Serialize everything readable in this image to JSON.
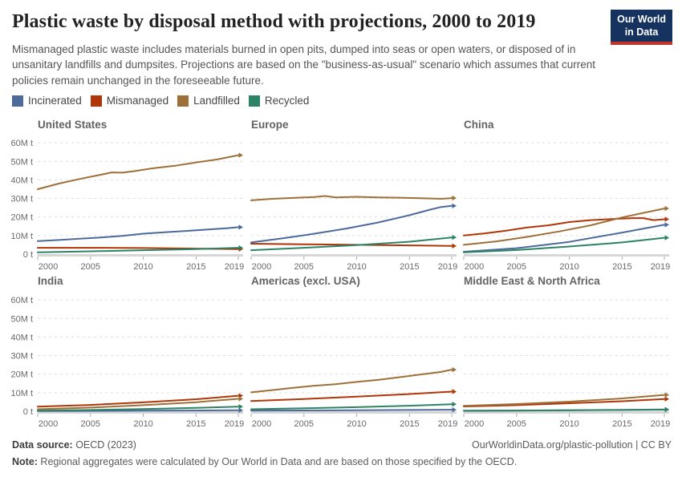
{
  "header": {
    "title": "Plastic waste by disposal method with projections, 2000 to 2019",
    "subtitle": "Mismanaged plastic waste includes materials burned in open pits, dumped into seas or open waters, or disposed of in unsanitary landfills and dumpsites. Projections are based on the \"business-as-usual\" scenario which assumes that current policies remain unchanged in the foreseeable future.",
    "logo": {
      "line1": "Our World",
      "line2": "in Data",
      "bg_color": "#16335F",
      "accent_color": "#C5342B"
    }
  },
  "legend": {
    "items": [
      {
        "label": "Incinerated",
        "color": "#4C6A9C"
      },
      {
        "label": "Mismanaged",
        "color": "#B13507"
      },
      {
        "label": "Landfilled",
        "color": "#9D7039"
      },
      {
        "label": "Recycled",
        "color": "#2C8465"
      }
    ]
  },
  "axes": {
    "unit": "million tonnes",
    "y_tick_labels": [
      "0 t",
      "10M t",
      "20M t",
      "30M t",
      "40M t",
      "50M t",
      "60M t"
    ],
    "y_tick_values": [
      0,
      10,
      20,
      30,
      40,
      50,
      60
    ],
    "x_tick_years": [
      2000,
      2005,
      2010,
      2015,
      2019
    ],
    "ylim": [
      0,
      60
    ],
    "xlim": [
      2000,
      2019
    ],
    "grid": "dashed-horizontal"
  },
  "chart_data": [
    {
      "title": "United States",
      "type": "line",
      "series": [
        {
          "name": "Incinerated",
          "points": [
            [
              2000,
              7
            ],
            [
              2002,
              7.6
            ],
            [
              2004,
              8.3
            ],
            [
              2006,
              9
            ],
            [
              2008,
              9.8
            ],
            [
              2010,
              11
            ],
            [
              2012,
              11.8
            ],
            [
              2014,
              12.5
            ],
            [
              2016,
              13.2
            ],
            [
              2018,
              14
            ],
            [
              2019,
              14.5
            ]
          ]
        },
        {
          "name": "Mismanaged",
          "points": [
            [
              2000,
              3.4
            ],
            [
              2005,
              3.4
            ],
            [
              2010,
              3.3
            ],
            [
              2015,
              3.0
            ],
            [
              2019,
              2.7
            ]
          ]
        },
        {
          "name": "Landfilled",
          "points": [
            [
              2000,
              35
            ],
            [
              2002,
              38
            ],
            [
              2004,
              40.5
            ],
            [
              2006,
              42.8
            ],
            [
              2007,
              44
            ],
            [
              2008,
              43.9
            ],
            [
              2009,
              44.6
            ],
            [
              2011,
              46.3
            ],
            [
              2013,
              47.6
            ],
            [
              2015,
              49.4
            ],
            [
              2017,
              51
            ],
            [
              2019,
              53.3
            ]
          ]
        },
        {
          "name": "Recycled",
          "points": [
            [
              2000,
              1.0
            ],
            [
              2005,
              1.5
            ],
            [
              2010,
              2.1
            ],
            [
              2015,
              2.7
            ],
            [
              2019,
              3.4
            ]
          ]
        }
      ]
    },
    {
      "title": "Europe",
      "type": "line",
      "series": [
        {
          "name": "Incinerated",
          "points": [
            [
              2000,
              6.3
            ],
            [
              2003,
              8.5
            ],
            [
              2006,
              11
            ],
            [
              2009,
              13.8
            ],
            [
              2012,
              17
            ],
            [
              2015,
              21
            ],
            [
              2017,
              24
            ],
            [
              2018,
              25.4
            ],
            [
              2019,
              26
            ]
          ]
        },
        {
          "name": "Mismanaged",
          "points": [
            [
              2000,
              5.6
            ],
            [
              2005,
              5.3
            ],
            [
              2010,
              5.0
            ],
            [
              2015,
              4.7
            ],
            [
              2019,
              4.4
            ]
          ]
        },
        {
          "name": "Landfilled",
          "points": [
            [
              2000,
              29
            ],
            [
              2002,
              29.8
            ],
            [
              2004,
              30.3
            ],
            [
              2006,
              30.8
            ],
            [
              2007,
              31.3
            ],
            [
              2008,
              30.6
            ],
            [
              2010,
              30.9
            ],
            [
              2012,
              30.6
            ],
            [
              2014,
              30.4
            ],
            [
              2016,
              30.1
            ],
            [
              2018,
              29.8
            ],
            [
              2019,
              30.2
            ]
          ]
        },
        {
          "name": "Recycled",
          "points": [
            [
              2000,
              2.1
            ],
            [
              2005,
              3.4
            ],
            [
              2010,
              4.9
            ],
            [
              2015,
              6.7
            ],
            [
              2019,
              9.0
            ]
          ]
        }
      ]
    },
    {
      "title": "China",
      "type": "line",
      "series": [
        {
          "name": "Incinerated",
          "points": [
            [
              2000,
              1.3
            ],
            [
              2005,
              3.2
            ],
            [
              2010,
              6.6
            ],
            [
              2015,
              11.6
            ],
            [
              2019,
              15.8
            ]
          ]
        },
        {
          "name": "Mismanaged",
          "points": [
            [
              2000,
              10
            ],
            [
              2002,
              11.2
            ],
            [
              2004,
              12.6
            ],
            [
              2006,
              14.4
            ],
            [
              2008,
              15.5
            ],
            [
              2010,
              17.3
            ],
            [
              2012,
              18.3
            ],
            [
              2014,
              18.9
            ],
            [
              2016,
              19.4
            ],
            [
              2017,
              19.4
            ],
            [
              2018,
              18.3
            ],
            [
              2019,
              18.8
            ]
          ]
        },
        {
          "name": "Landfilled",
          "points": [
            [
              2000,
              5
            ],
            [
              2003,
              6.8
            ],
            [
              2006,
              9.3
            ],
            [
              2009,
              12.2
            ],
            [
              2012,
              15.5
            ],
            [
              2015,
              19.8
            ],
            [
              2017,
              22.2
            ],
            [
              2019,
              24.6
            ]
          ]
        },
        {
          "name": "Recycled",
          "points": [
            [
              2000,
              1.0
            ],
            [
              2005,
              2.2
            ],
            [
              2010,
              4.1
            ],
            [
              2015,
              6.3
            ],
            [
              2019,
              8.8
            ]
          ]
        }
      ]
    },
    {
      "title": "India",
      "type": "line",
      "series": [
        {
          "name": "Incinerated",
          "points": [
            [
              2000,
              0.15
            ],
            [
              2010,
              0.3
            ],
            [
              2019,
              0.5
            ]
          ]
        },
        {
          "name": "Mismanaged",
          "points": [
            [
              2000,
              2.5
            ],
            [
              2005,
              3.4
            ],
            [
              2010,
              4.8
            ],
            [
              2015,
              6.5
            ],
            [
              2019,
              8.4
            ]
          ]
        },
        {
          "name": "Landfilled",
          "points": [
            [
              2000,
              1.1
            ],
            [
              2005,
              2.0
            ],
            [
              2010,
              3.3
            ],
            [
              2015,
              4.9
            ],
            [
              2019,
              6.7
            ]
          ]
        },
        {
          "name": "Recycled",
          "points": [
            [
              2000,
              0.3
            ],
            [
              2005,
              0.7
            ],
            [
              2010,
              1.2
            ],
            [
              2015,
              1.8
            ],
            [
              2019,
              2.5
            ]
          ]
        }
      ]
    },
    {
      "title": "Americas (excl. USA)",
      "type": "line",
      "series": [
        {
          "name": "Incinerated",
          "points": [
            [
              2000,
              0.4
            ],
            [
              2010,
              0.5
            ],
            [
              2019,
              0.8
            ]
          ]
        },
        {
          "name": "Mismanaged",
          "points": [
            [
              2000,
              5.5
            ],
            [
              2005,
              6.6
            ],
            [
              2010,
              7.9
            ],
            [
              2015,
              9.3
            ],
            [
              2019,
              10.6
            ]
          ]
        },
        {
          "name": "Landfilled",
          "points": [
            [
              2000,
              10.2
            ],
            [
              2002,
              11.4
            ],
            [
              2004,
              12.6
            ],
            [
              2006,
              13.8
            ],
            [
              2008,
              14.6
            ],
            [
              2010,
              15.8
            ],
            [
              2012,
              16.9
            ],
            [
              2014,
              18.3
            ],
            [
              2016,
              19.8
            ],
            [
              2018,
              21.2
            ],
            [
              2019,
              22.4
            ]
          ]
        },
        {
          "name": "Recycled",
          "points": [
            [
              2000,
              1.1
            ],
            [
              2005,
              1.6
            ],
            [
              2010,
              2.2
            ],
            [
              2015,
              3.0
            ],
            [
              2019,
              3.8
            ]
          ]
        }
      ]
    },
    {
      "title": "Middle East & North Africa",
      "type": "line",
      "series": [
        {
          "name": "Incinerated",
          "points": [
            [
              2000,
              0.2
            ],
            [
              2010,
              0.5
            ],
            [
              2019,
              1.0
            ]
          ]
        },
        {
          "name": "Mismanaged",
          "points": [
            [
              2000,
              2.6
            ],
            [
              2005,
              3.3
            ],
            [
              2010,
              4.3
            ],
            [
              2015,
              5.4
            ],
            [
              2019,
              6.6
            ]
          ]
        },
        {
          "name": "Landfilled",
          "points": [
            [
              2000,
              2.9
            ],
            [
              2005,
              3.9
            ],
            [
              2010,
              5.2
            ],
            [
              2015,
              6.9
            ],
            [
              2019,
              8.8
            ]
          ]
        },
        {
          "name": "Recycled",
          "points": [
            [
              2000,
              0.3
            ],
            [
              2010,
              0.5
            ],
            [
              2019,
              0.8
            ]
          ]
        }
      ]
    }
  ],
  "footer": {
    "datasource_label": "Data source:",
    "datasource_value": " OECD (2023)",
    "link": "OurWorldinData.org/plastic-pollution | CC BY",
    "note_label": "Note:",
    "note_value": " Regional aggregates were calculated by Our World in Data and are based on those specified by the OECD."
  }
}
